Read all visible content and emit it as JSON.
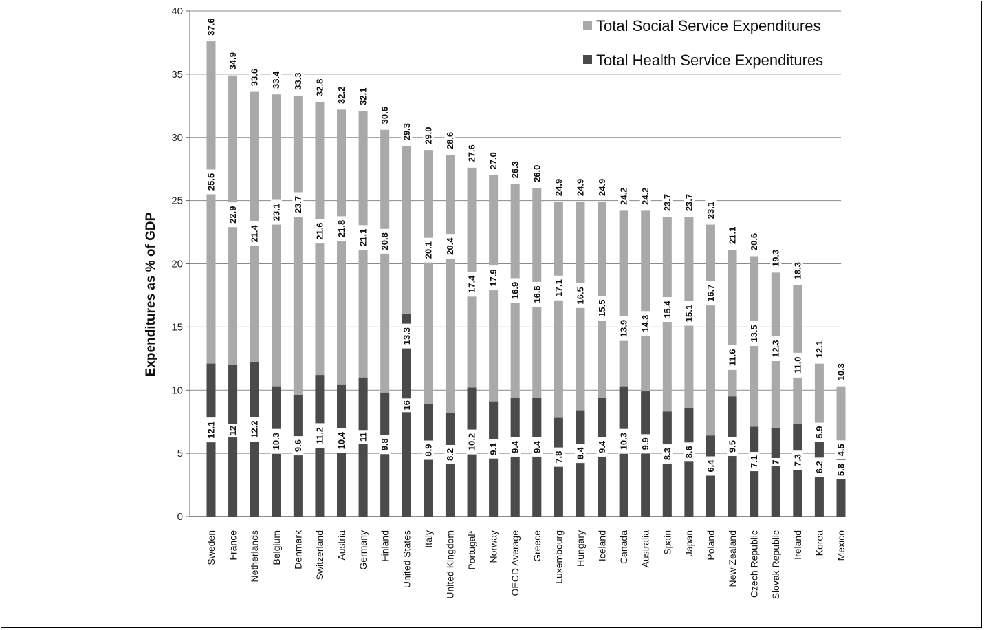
{
  "chart_data": {
    "type": "bar",
    "subtype": "overlapping-stacked",
    "ylabel": "Expenditures as % of GDP",
    "xlabel": "",
    "ylim": [
      0,
      40
    ],
    "yticks": [
      "0",
      "5",
      "10",
      "15",
      "20",
      "25",
      "30",
      "35",
      "40"
    ],
    "grid": true,
    "legend_position": "top-right",
    "legend": [
      "Total Social Service Expenditures",
      "Total Health Service Expenditures"
    ],
    "colors": {
      "social": "#a9a9a9",
      "health": "#4a4a4a"
    },
    "categories": [
      "Sweden",
      "France",
      "Netherlands",
      "Belgium",
      "Denmark",
      "Switzerland",
      "Austria",
      "Germany",
      "Finland",
      "United States",
      "Italy",
      "United Kingdom",
      "Portugal*",
      "Norway",
      "OECD Average",
      "Greece",
      "Luxembourg",
      "Hungary",
      "Iceland",
      "Canada",
      "Australia",
      "Spain",
      "Japan",
      "Poland",
      "New Zealand",
      "Czech Republic",
      "Slovak Republic",
      "Ireland",
      "Korea",
      "Mexico"
    ],
    "series": [
      {
        "name": "Total Social Service Expenditures",
        "values": [
          37.6,
          34.9,
          33.6,
          33.4,
          33.3,
          32.8,
          32.2,
          32.1,
          30.6,
          29.3,
          29.0,
          28.6,
          27.6,
          27.0,
          26.3,
          26.0,
          24.9,
          24.9,
          24.9,
          24.2,
          24.2,
          23.7,
          23.7,
          23.1,
          21.1,
          20.6,
          19.3,
          18.3,
          12.1,
          10.3
        ],
        "labels": [
          "37.6",
          "34.9",
          "33.6",
          "33.4",
          "33.3",
          "32.8",
          "32.2",
          "32.1",
          "30.6",
          "29.3",
          "29.0",
          "28.6",
          "27.6",
          "27.0",
          "26.3",
          "26.0",
          "24.9",
          "24.9",
          "24.9",
          "24.2",
          "24.2",
          "23.7",
          "23.7",
          "23.1",
          "21.1",
          "20.6",
          "19.3",
          "18.3",
          "12.1",
          "10.3"
        ]
      },
      {
        "name": "Total Health Service Expenditures",
        "values": [
          12.1,
          12,
          12.2,
          10.3,
          9.6,
          11.2,
          10.4,
          11,
          9.8,
          16,
          8.9,
          8.2,
          10.2,
          9.1,
          9.4,
          9.4,
          7.8,
          8.4,
          9.4,
          10.3,
          9.9,
          8.3,
          8.6,
          6.4,
          9.5,
          7.1,
          7,
          7.3,
          6.2,
          5.8
        ],
        "labels": [
          "12.1",
          "12",
          "12.2",
          "10.3",
          "9.6",
          "11.2",
          "10.4",
          "11",
          "9.8",
          "16",
          "8.9",
          "8.2",
          "10.2",
          "9.1",
          "9.4",
          "9.4",
          "7.8",
          "8.4",
          "9.4",
          "10.3",
          "9.9",
          "8.3",
          "8.6",
          "6.4",
          "9.5",
          "7.1",
          "7",
          "7.3",
          "6.2",
          "5.8"
        ]
      },
      {
        "name": "",
        "values": [
          25.5,
          22.9,
          21.4,
          23.1,
          23.7,
          21.6,
          21.8,
          21.1,
          20.8,
          13.3,
          20.1,
          20.4,
          17.4,
          17.9,
          16.9,
          16.6,
          17.1,
          16.5,
          15.5,
          13.9,
          14.3,
          15.4,
          15.1,
          16.7,
          11.6,
          13.5,
          12.3,
          11.0,
          5.9,
          4.5
        ],
        "labels": [
          "25.5",
          "22.9",
          "21.4",
          "23.1",
          "23.7",
          "21.6",
          "21.8",
          "21.1",
          "20.8",
          "13.3",
          "20.1",
          "20.4",
          "17.4",
          "17.9",
          "16.9",
          "16.6",
          "17.1",
          "16.5",
          "15.5",
          "13.9",
          "14.3",
          "15.4",
          "15.1",
          "16.7",
          "11.6",
          "13.5",
          "12.3",
          "11.0",
          "5.9",
          "4.5"
        ]
      }
    ]
  }
}
